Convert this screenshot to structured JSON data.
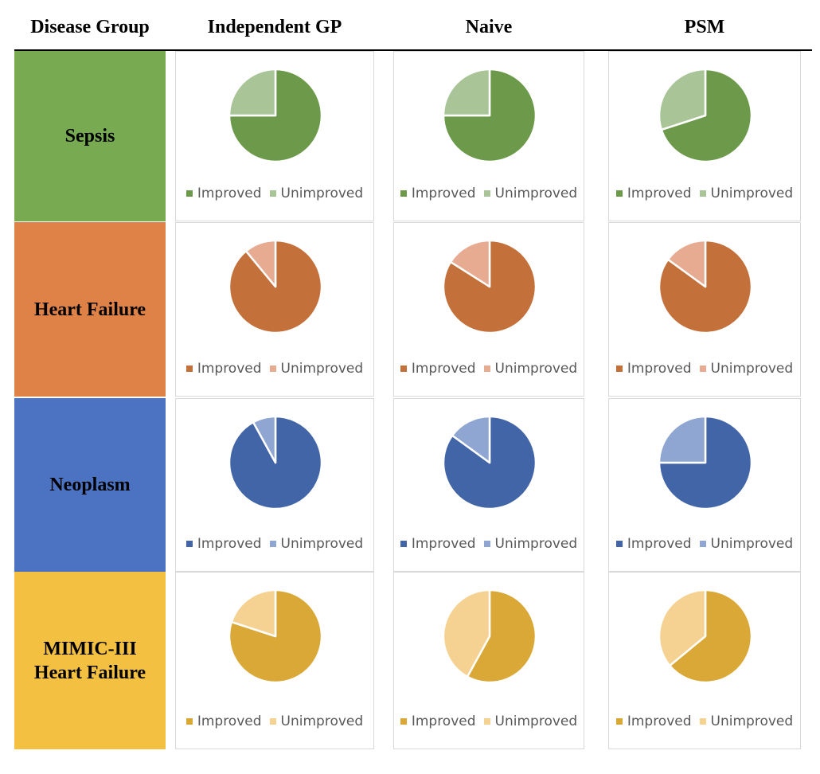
{
  "header": {
    "group_col": "Disease Group",
    "methods": [
      "Independent GP",
      "Naive",
      "PSM"
    ]
  },
  "legend": {
    "improved": "Improved",
    "unimproved": "Unimproved"
  },
  "chart_data": {
    "type": "pie",
    "title": "",
    "methods": [
      "Independent GP",
      "Naive",
      "PSM"
    ],
    "categories": [
      "Improved",
      "Unimproved"
    ],
    "rows": [
      {
        "group": "Sepsis",
        "colors": {
          "improved": "#6d9a4a",
          "unimproved": "#a9c598",
          "band": "#77aa51"
        },
        "values": [
          [
            0.75,
            0.25
          ],
          [
            0.75,
            0.25
          ],
          [
            0.7,
            0.3
          ]
        ]
      },
      {
        "group": "Heart Failure",
        "colors": {
          "improved": "#c4703a",
          "unimproved": "#e7ab92",
          "band": "#df8247"
        },
        "values": [
          [
            0.89,
            0.11
          ],
          [
            0.84,
            0.16
          ],
          [
            0.85,
            0.15
          ]
        ]
      },
      {
        "group": "Neoplasm",
        "colors": {
          "improved": "#4265a8",
          "unimproved": "#8fa5d2",
          "band": "#4c73c2"
        },
        "values": [
          [
            0.92,
            0.08
          ],
          [
            0.85,
            0.15
          ],
          [
            0.75,
            0.25
          ]
        ]
      },
      {
        "group": "MIMIC-III\nHeart Failure",
        "colors": {
          "improved": "#d9a836",
          "unimproved": "#f5d292",
          "band": "#f3c041"
        },
        "values": [
          [
            0.8,
            0.2
          ],
          [
            0.58,
            0.42
          ],
          [
            0.64,
            0.36
          ]
        ]
      }
    ]
  }
}
